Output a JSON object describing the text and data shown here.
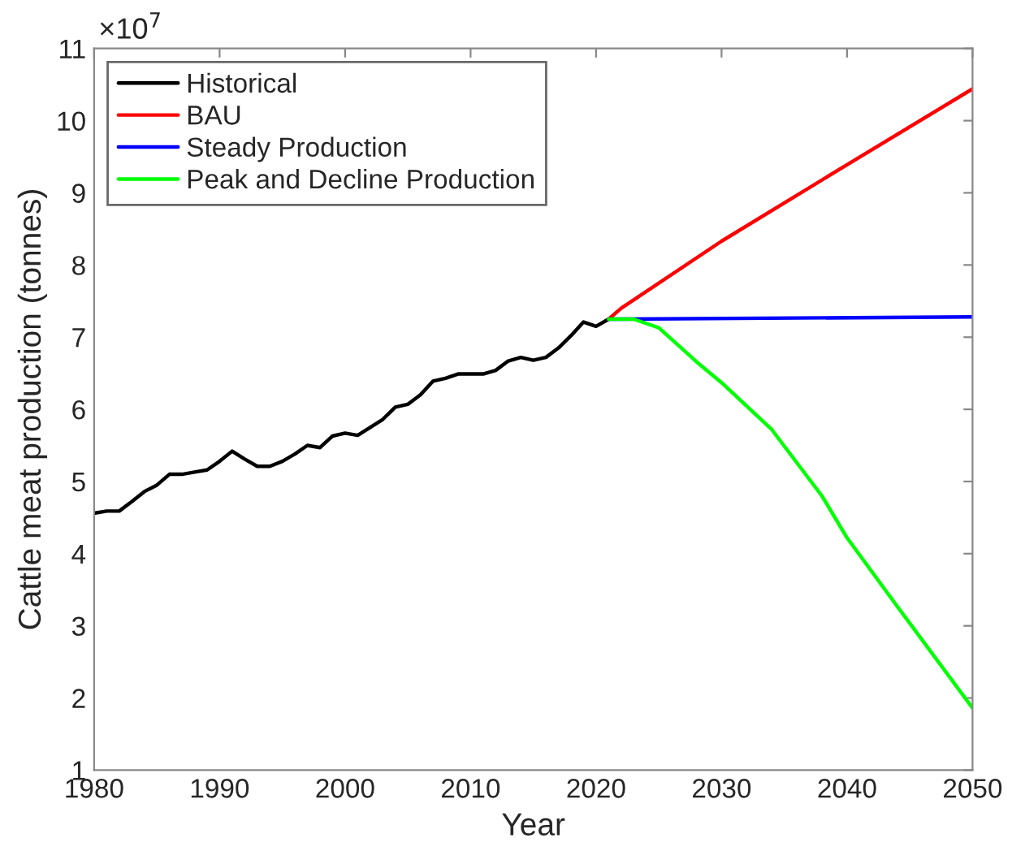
{
  "chart_data": {
    "type": "line",
    "xlabel": "Year",
    "ylabel": "Cattle meat production (tonnes)",
    "annotations": [
      "×10$^{7}$"
    ],
    "series": [
      {
        "name": "Historical",
        "color": "#000000",
        "x": [
          1980,
          1981,
          1982,
          1983,
          1984,
          1985,
          1986,
          1987,
          1988,
          1989,
          1990,
          1991,
          1992,
          1993,
          1994,
          1995,
          1996,
          1997,
          1998,
          1999,
          2000,
          2001,
          2002,
          2003,
          2004,
          2005,
          2006,
          2007,
          2008,
          2009,
          2010,
          2011,
          2012,
          2013,
          2014,
          2015,
          2016,
          2017,
          2018,
          2019,
          2020,
          2021
        ],
        "values": [
          4.56,
          4.59,
          4.59,
          4.72,
          4.86,
          4.95,
          5.1,
          5.1,
          5.13,
          5.16,
          5.28,
          5.42,
          5.31,
          5.21,
          5.21,
          5.28,
          5.38,
          5.5,
          5.47,
          5.63,
          5.67,
          5.64,
          5.75,
          5.86,
          6.03,
          6.07,
          6.2,
          6.39,
          6.43,
          6.49,
          6.49,
          6.49,
          6.54,
          6.67,
          6.72,
          6.68,
          6.72,
          6.85,
          7.02,
          7.21,
          7.15,
          7.25
        ]
      },
      {
        "name": "BAU",
        "color": "#ff0000",
        "x": [
          2021,
          2022,
          2030,
          2040,
          2050
        ],
        "values": [
          7.25,
          7.4,
          8.33,
          9.39,
          10.44
        ]
      },
      {
        "name": "Steady Production",
        "color": "#0000ff",
        "x": [
          2021,
          2050
        ],
        "values": [
          7.25,
          7.28
        ]
      },
      {
        "name": "Peak and Decline Production",
        "color": "#00ff00",
        "x": [
          2021,
          2023,
          2025,
          2028,
          2030,
          2034,
          2038,
          2040,
          2044,
          2050
        ],
        "values": [
          7.25,
          7.25,
          7.13,
          6.66,
          6.37,
          5.72,
          4.8,
          4.22,
          3.27,
          1.86
        ]
      }
    ],
    "xlim": [
      1980,
      2050
    ],
    "xticks": [
      1980,
      1990,
      2000,
      2010,
      2020,
      2030,
      2040,
      2050
    ],
    "ylim": [
      1,
      11
    ],
    "yticks": [
      1,
      2,
      3,
      4,
      5,
      6,
      7,
      8,
      9,
      10,
      11
    ],
    "legend": "top left",
    "grid": false
  }
}
